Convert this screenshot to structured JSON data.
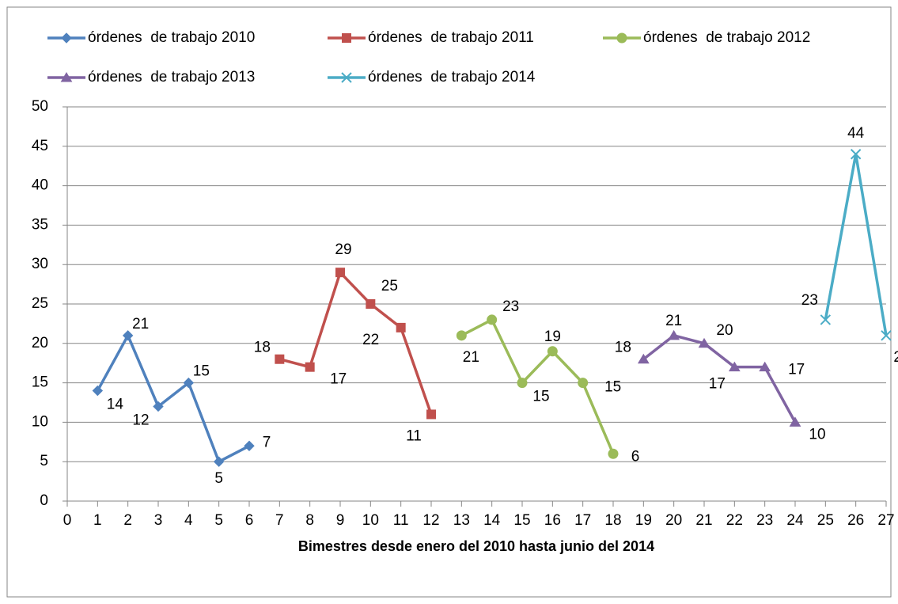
{
  "chart_data": {
    "type": "line",
    "x_label": "Bimestres desde enero del 2010 hasta junio del 2014",
    "xlim": [
      0,
      27
    ],
    "xticks": [
      0,
      1,
      2,
      3,
      4,
      5,
      6,
      7,
      8,
      9,
      10,
      11,
      12,
      13,
      14,
      15,
      16,
      17,
      18,
      19,
      20,
      21,
      22,
      23,
      24,
      25,
      26,
      27
    ],
    "ylim": [
      0,
      50
    ],
    "yticks": [
      0,
      5,
      10,
      15,
      20,
      25,
      30,
      35,
      40,
      45,
      50
    ],
    "grid": true,
    "legend": "top",
    "series": [
      {
        "name": "órdenes  de trabajo 2010",
        "color": "#4f81bd",
        "marker": "diamond",
        "x": [
          1,
          2,
          3,
          4,
          5,
          6
        ],
        "values": [
          14,
          21,
          12,
          15,
          5,
          7
        ]
      },
      {
        "name": "órdenes  de trabajo 2011",
        "color": "#c0504d",
        "marker": "square",
        "x": [
          7,
          8,
          9,
          10,
          11,
          12
        ],
        "values": [
          18,
          17,
          29,
          25,
          22,
          11
        ]
      },
      {
        "name": "órdenes  de trabajo 2012",
        "color": "#9bbb59",
        "marker": "circle",
        "x": [
          13,
          14,
          15,
          16,
          17,
          18
        ],
        "values": [
          21,
          23,
          15,
          19,
          15,
          6
        ]
      },
      {
        "name": "órdenes  de trabajo 2013",
        "color": "#8064a2",
        "marker": "triangle",
        "x": [
          19,
          20,
          21,
          22,
          23,
          24
        ],
        "values": [
          18,
          21,
          20,
          17,
          17,
          10
        ]
      },
      {
        "name": "órdenes  de trabajo 2014",
        "color": "#4bacc6",
        "marker": "x",
        "x": [
          25,
          26,
          27
        ],
        "values": [
          23,
          44,
          21
        ]
      }
    ]
  }
}
